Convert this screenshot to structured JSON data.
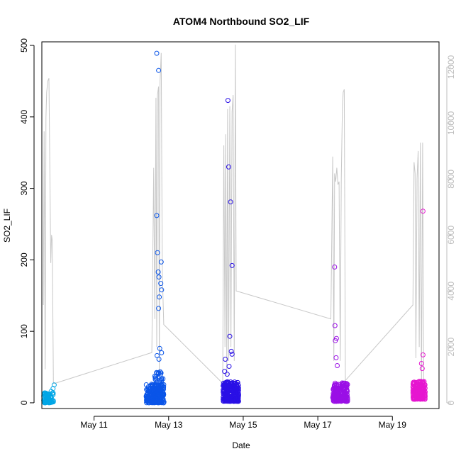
{
  "chart_data": {
    "type": "scatter",
    "title": "ATOM4 Northbound SO2_LIF",
    "xlabel": "Date",
    "ylabel": "SO2_LIF",
    "xlim": [
      9.6,
      20.25
    ],
    "ylim": [
      -8,
      505
    ],
    "y2lim": [
      -200,
      12900
    ],
    "x_tick_values": [
      11,
      13,
      15,
      17,
      19
    ],
    "x_tick_labels": [
      "May 11",
      "May 13",
      "May 15",
      "May 17",
      "May 19"
    ],
    "y_ticks": [
      0,
      100,
      200,
      300,
      400,
      500
    ],
    "y2_ticks": [
      0,
      2000,
      4000,
      6000,
      8000,
      10000,
      12000
    ],
    "grid": false,
    "colors": {
      "axis": "#000000",
      "right_axis": "#bdbdbd",
      "secondary_line": "#c8c8c8",
      "flights": [
        "#00a6e6",
        "#0a55e8",
        "#2a10e6",
        "#9a10e6",
        "#e616d0"
      ]
    },
    "scatter_points": [
      {
        "x": 12.68,
        "y": 489,
        "flight": 1
      },
      {
        "x": 12.73,
        "y": 465,
        "flight": 1
      },
      {
        "x": 12.68,
        "y": 262,
        "flight": 1
      },
      {
        "x": 12.7,
        "y": 210,
        "flight": 1
      },
      {
        "x": 12.8,
        "y": 197,
        "flight": 1
      },
      {
        "x": 12.72,
        "y": 183,
        "flight": 1
      },
      {
        "x": 12.74,
        "y": 176,
        "flight": 1
      },
      {
        "x": 12.79,
        "y": 167,
        "flight": 1
      },
      {
        "x": 12.81,
        "y": 158,
        "flight": 1
      },
      {
        "x": 12.75,
        "y": 148,
        "flight": 1
      },
      {
        "x": 12.73,
        "y": 132,
        "flight": 1
      },
      {
        "x": 12.76,
        "y": 76,
        "flight": 1
      },
      {
        "x": 12.81,
        "y": 70,
        "flight": 1
      },
      {
        "x": 12.69,
        "y": 66,
        "flight": 1
      },
      {
        "x": 12.74,
        "y": 61,
        "flight": 1
      },
      {
        "x": 14.59,
        "y": 423,
        "flight": 2
      },
      {
        "x": 14.61,
        "y": 330,
        "flight": 2
      },
      {
        "x": 14.66,
        "y": 281,
        "flight": 2
      },
      {
        "x": 14.7,
        "y": 192,
        "flight": 2
      },
      {
        "x": 14.64,
        "y": 93,
        "flight": 2
      },
      {
        "x": 14.68,
        "y": 72,
        "flight": 2
      },
      {
        "x": 14.7,
        "y": 68,
        "flight": 2
      },
      {
        "x": 14.52,
        "y": 61,
        "flight": 2
      },
      {
        "x": 14.62,
        "y": 51,
        "flight": 2
      },
      {
        "x": 14.5,
        "y": 44,
        "flight": 2
      },
      {
        "x": 14.57,
        "y": 40,
        "flight": 2
      },
      {
        "x": 17.45,
        "y": 190,
        "flight": 3
      },
      {
        "x": 17.46,
        "y": 108,
        "flight": 3
      },
      {
        "x": 17.5,
        "y": 90,
        "flight": 3
      },
      {
        "x": 17.47,
        "y": 87,
        "flight": 3
      },
      {
        "x": 17.49,
        "y": 63,
        "flight": 3
      },
      {
        "x": 17.52,
        "y": 52,
        "flight": 3
      },
      {
        "x": 19.82,
        "y": 268,
        "flight": 4
      },
      {
        "x": 19.82,
        "y": 67,
        "flight": 4
      },
      {
        "x": 19.78,
        "y": 55,
        "flight": 4
      },
      {
        "x": 19.8,
        "y": 48,
        "flight": 4
      },
      {
        "x": 9.93,
        "y": 25,
        "flight": 0
      },
      {
        "x": 9.9,
        "y": 20,
        "flight": 0
      },
      {
        "x": 9.85,
        "y": 16,
        "flight": 0
      }
    ],
    "point_clusters": [
      {
        "x_range": [
          9.65,
          9.92
        ],
        "y_range": [
          0,
          14
        ],
        "n": 80,
        "flight": 0
      },
      {
        "x_range": [
          12.4,
          12.88
        ],
        "y_range": [
          0,
          26
        ],
        "n": 220,
        "flight": 1
      },
      {
        "x_range": [
          12.62,
          12.86
        ],
        "y_range": [
          10,
          45
        ],
        "n": 60,
        "flight": 1
      },
      {
        "x_range": [
          14.46,
          14.88
        ],
        "y_range": [
          2,
          30
        ],
        "n": 240,
        "flight": 2
      },
      {
        "x_range": [
          17.4,
          17.8
        ],
        "y_range": [
          2,
          28
        ],
        "n": 220,
        "flight": 3
      },
      {
        "x_range": [
          19.55,
          19.88
        ],
        "y_range": [
          5,
          30
        ],
        "n": 200,
        "flight": 4
      }
    ],
    "secondary_line_breaks": [
      [
        9.64,
        3500
      ],
      [
        9.66,
        9700
      ],
      [
        9.69,
        1200
      ],
      [
        9.71,
        10200
      ],
      [
        9.73,
        11100
      ],
      [
        9.76,
        11500
      ],
      [
        9.79,
        11600
      ],
      [
        9.81,
        9000
      ],
      [
        9.84,
        5000
      ],
      [
        9.86,
        6000
      ],
      [
        9.88,
        5800
      ],
      [
        9.91,
        700
      ],
      [
        9.95,
        700
      ],
      [
        12.55,
        1800
      ],
      [
        12.6,
        8400
      ],
      [
        12.63,
        3000
      ],
      [
        12.66,
        10900
      ],
      [
        12.68,
        2000
      ],
      [
        12.7,
        11000
      ],
      [
        12.73,
        11300
      ],
      [
        12.75,
        1000
      ],
      [
        12.77,
        11500
      ],
      [
        12.8,
        12500
      ],
      [
        12.83,
        4700
      ],
      [
        12.87,
        2800
      ],
      [
        14.45,
        700
      ],
      [
        14.48,
        9200
      ],
      [
        14.51,
        2000
      ],
      [
        14.53,
        9600
      ],
      [
        14.56,
        1000
      ],
      [
        14.58,
        10500
      ],
      [
        14.61,
        1500
      ],
      [
        14.64,
        10600
      ],
      [
        14.67,
        2000
      ],
      [
        14.7,
        10400
      ],
      [
        14.73,
        11000
      ],
      [
        14.76,
        1500
      ],
      [
        14.79,
        12800
      ],
      [
        14.81,
        4000
      ],
      [
        17.35,
        3000
      ],
      [
        17.4,
        8800
      ],
      [
        17.43,
        1500
      ],
      [
        17.45,
        8200
      ],
      [
        17.48,
        7900
      ],
      [
        17.51,
        8400
      ],
      [
        17.54,
        7800
      ],
      [
        17.57,
        7900
      ],
      [
        17.6,
        1500
      ],
      [
        17.63,
        8000
      ],
      [
        17.66,
        10600
      ],
      [
        17.68,
        11100
      ],
      [
        17.71,
        11200
      ],
      [
        17.74,
        800
      ],
      [
        19.55,
        3500
      ],
      [
        19.58,
        8600
      ],
      [
        19.61,
        8200
      ],
      [
        19.63,
        1600
      ],
      [
        19.66,
        8000
      ],
      [
        19.69,
        9000
      ],
      [
        19.72,
        2000
      ],
      [
        19.75,
        9300
      ],
      [
        19.78,
        500
      ],
      [
        19.81,
        9300
      ],
      [
        19.84,
        500
      ]
    ]
  }
}
